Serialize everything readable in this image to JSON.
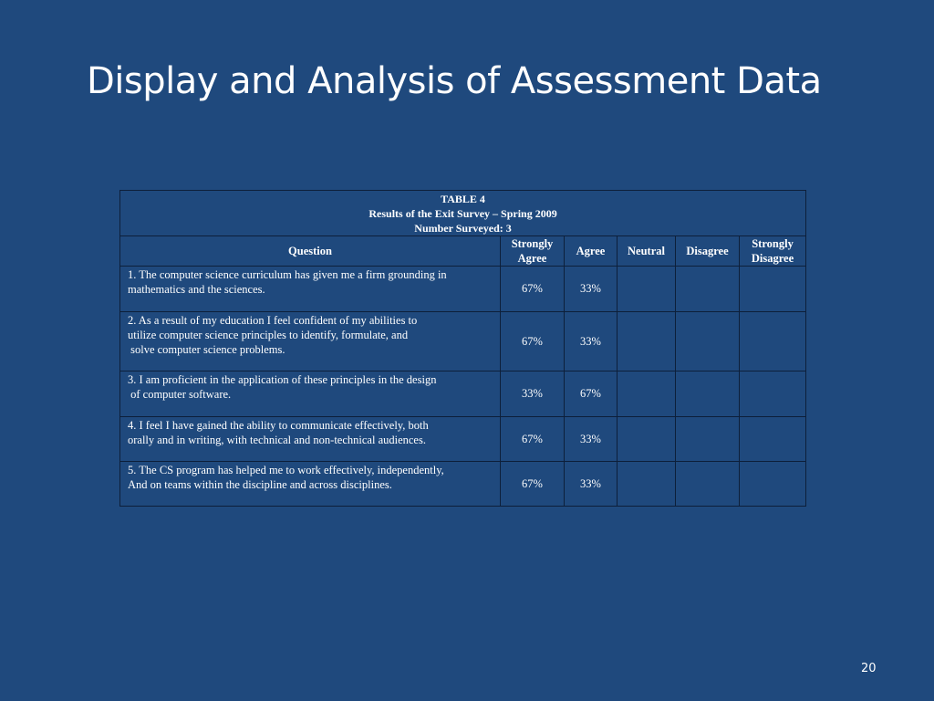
{
  "slide": {
    "title": "Display and Analysis of Assessment Data",
    "page_number": "20"
  },
  "table": {
    "caption": [
      "TABLE 4",
      "Results of the Exit Survey – Spring 2009",
      "Number Surveyed: 3"
    ],
    "headers": {
      "question": "Question",
      "strongly_agree": [
        "Strongly",
        "Agree"
      ],
      "agree": "Agree",
      "neutral": "Neutral",
      "disagree": "Disagree",
      "strongly_disagree": [
        "Strongly",
        "Disagree"
      ]
    },
    "rows": [
      {
        "question_lines": [
          "1. The computer science curriculum has given me a firm grounding in",
          "mathematics and the sciences."
        ],
        "strongly_agree": "67%",
        "agree": "33%",
        "neutral": "",
        "disagree": "",
        "strongly_disagree": ""
      },
      {
        "question_lines": [
          "2. As a result of my education I feel confident of my abilities to",
          "utilize computer science principles to identify, formulate, and",
          " solve computer science problems."
        ],
        "strongly_agree": "67%",
        "agree": "33%",
        "neutral": "",
        "disagree": "",
        "strongly_disagree": ""
      },
      {
        "question_lines": [
          "3. I am proficient in the application of these principles in the design",
          " of computer software."
        ],
        "strongly_agree": "33%",
        "agree": "67%",
        "neutral": "",
        "disagree": "",
        "strongly_disagree": ""
      },
      {
        "question_lines": [
          "4. I feel I have gained the ability to communicate effectively, both",
          "orally and in writing, with technical and non-technical audiences."
        ],
        "strongly_agree": "67%",
        "agree": "33%",
        "neutral": "",
        "disagree": "",
        "strongly_disagree": ""
      },
      {
        "question_lines": [
          "5. The CS program has helped me to work effectively, independently,",
          "And on teams within the discipline and across disciplines."
        ],
        "strongly_agree": "67%",
        "agree": "33%",
        "neutral": "",
        "disagree": "",
        "strongly_disagree": ""
      }
    ]
  }
}
